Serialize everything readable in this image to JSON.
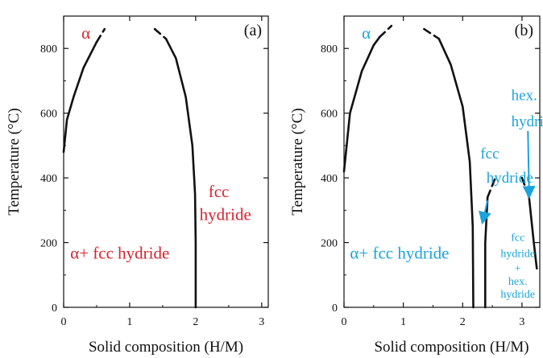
{
  "colors": {
    "panel_a_labels": "#d6232f",
    "panel_b_labels": "#1aa3dd",
    "curve": "#111111"
  },
  "chart_data": [
    {
      "type": "line",
      "panel_label": "(a)",
      "xlabel": "Solid composition (H/M)",
      "ylabel": "Temperature (°C)",
      "xlim": [
        0,
        3.1
      ],
      "ylim": [
        0,
        900
      ],
      "xticks": [
        0,
        1,
        2,
        3
      ],
      "yticks": [
        0,
        200,
        400,
        600,
        800
      ],
      "grid": false,
      "series": [
        {
          "values": [
            [
              0.0,
              480
            ],
            [
              0.05,
              580
            ],
            [
              0.15,
              650
            ],
            [
              0.3,
              740
            ],
            [
              0.45,
              800
            ],
            [
              0.5,
              820
            ]
          ]
        },
        {
          "style": "dashed",
          "values": [
            [
              0.5,
              820
            ],
            [
              0.62,
              860
            ]
          ]
        },
        {
          "style": "dashed",
          "values": [
            [
              1.38,
              860
            ],
            [
              1.55,
              830
            ]
          ]
        },
        {
          "values": [
            [
              1.55,
              830
            ],
            [
              1.7,
              770
            ],
            [
              1.85,
              650
            ],
            [
              1.95,
              500
            ],
            [
              1.99,
              350
            ],
            [
              2.0,
              200
            ],
            [
              2.0,
              0
            ]
          ]
        }
      ],
      "annotations": [
        {
          "text": "α",
          "x": 0.27,
          "y": 830
        },
        {
          "text": "α+ fcc hydride",
          "x": 0.1,
          "y": 150
        },
        {
          "text": "fcc",
          "x": 2.35,
          "y": 340
        },
        {
          "text": "hydride",
          "x": 2.45,
          "y": 270
        }
      ]
    },
    {
      "type": "line",
      "panel_label": "(b)",
      "xlabel": "Solid composition (H/M)",
      "ylabel": "Temperature (°C)",
      "xlim": [
        0,
        3.3
      ],
      "ylim": [
        0,
        900
      ],
      "xticks": [
        0,
        1,
        2,
        3
      ],
      "yticks": [
        0,
        200,
        400,
        600,
        800
      ],
      "grid": false,
      "series": [
        {
          "values": [
            [
              0.0,
              420
            ],
            [
              0.1,
              600
            ],
            [
              0.3,
              730
            ],
            [
              0.5,
              810
            ],
            [
              0.6,
              835
            ]
          ]
        },
        {
          "style": "dashed",
          "values": [
            [
              0.6,
              835
            ],
            [
              0.8,
              870
            ]
          ]
        },
        {
          "style": "dashed",
          "values": [
            [
              1.35,
              860
            ],
            [
              1.6,
              830
            ]
          ]
        },
        {
          "values": [
            [
              1.6,
              830
            ],
            [
              1.8,
              750
            ],
            [
              2.0,
              620
            ],
            [
              2.12,
              450
            ],
            [
              2.17,
              250
            ],
            [
              2.18,
              0
            ]
          ]
        },
        {
          "style": "dashed",
          "values": [
            [
              2.42,
              340
            ],
            [
              2.55,
              400
            ]
          ]
        },
        {
          "values": [
            [
              2.38,
              0
            ],
            [
              2.38,
              200
            ],
            [
              2.42,
              340
            ]
          ]
        },
        {
          "style": "dashed",
          "values": [
            [
              3.0,
              400
            ],
            [
              3.12,
              340
            ]
          ]
        },
        {
          "values": [
            [
              3.12,
              340
            ],
            [
              3.2,
              200
            ],
            [
              3.25,
              120
            ]
          ]
        }
      ],
      "annotations": [
        {
          "text": "α",
          "x": 0.3,
          "y": 830
        },
        {
          "text": "α+ fcc hydride",
          "x": 0.1,
          "y": 150
        },
        {
          "text": "hex.",
          "x": 2.82,
          "y": 640
        },
        {
          "text": "hydride",
          "x": 2.82,
          "y": 560
        },
        {
          "text": "fcc",
          "x": 2.3,
          "y": 460
        },
        {
          "text": "hydride",
          "x": 2.4,
          "y": 385
        },
        {
          "text": "fcc",
          "x": 2.93,
          "y": 205
        },
        {
          "text": "hydride",
          "x": 2.93,
          "y": 155
        },
        {
          "text": "+",
          "x": 2.93,
          "y": 110
        },
        {
          "text": "hex.",
          "x": 2.93,
          "y": 70
        },
        {
          "text": "hydride",
          "x": 2.93,
          "y": 30
        }
      ]
    }
  ]
}
